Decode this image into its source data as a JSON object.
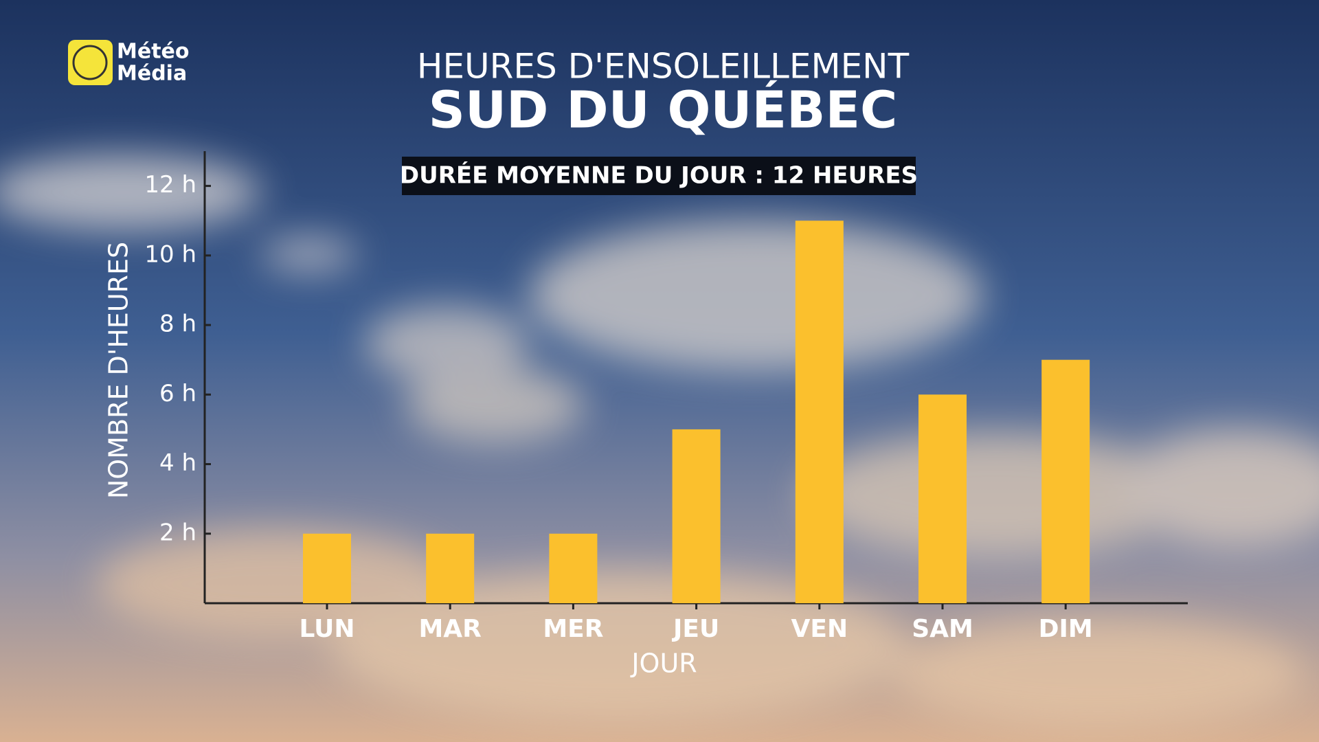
{
  "brand": {
    "line1": "Météo",
    "line2": "Média"
  },
  "chart_data": {
    "type": "bar",
    "title": "HEURES D'ENSOLEILLEMENT",
    "subtitle": "SUD DU QUÉBEC",
    "annotation": "DURÉE MOYENNE DU JOUR : 12 HEURES",
    "x_label": "JOUR",
    "y_label": "NOMBRE D'HEURES",
    "categories": [
      "LUN",
      "MAR",
      "MER",
      "JEU",
      "VEN",
      "SAM",
      "DIM"
    ],
    "values": [
      2,
      2,
      2,
      5,
      11,
      6,
      7
    ],
    "color": "#fbc02d",
    "ylim": [
      0,
      13
    ],
    "yticks": [
      {
        "value": 2,
        "label": "2 h"
      },
      {
        "value": 4,
        "label": "4 h"
      },
      {
        "value": 6,
        "label": "6 h"
      },
      {
        "value": 8,
        "label": "8 h"
      },
      {
        "value": 10,
        "label": "10 h"
      },
      {
        "value": 12,
        "label": "12 h"
      }
    ],
    "grid": false
  }
}
